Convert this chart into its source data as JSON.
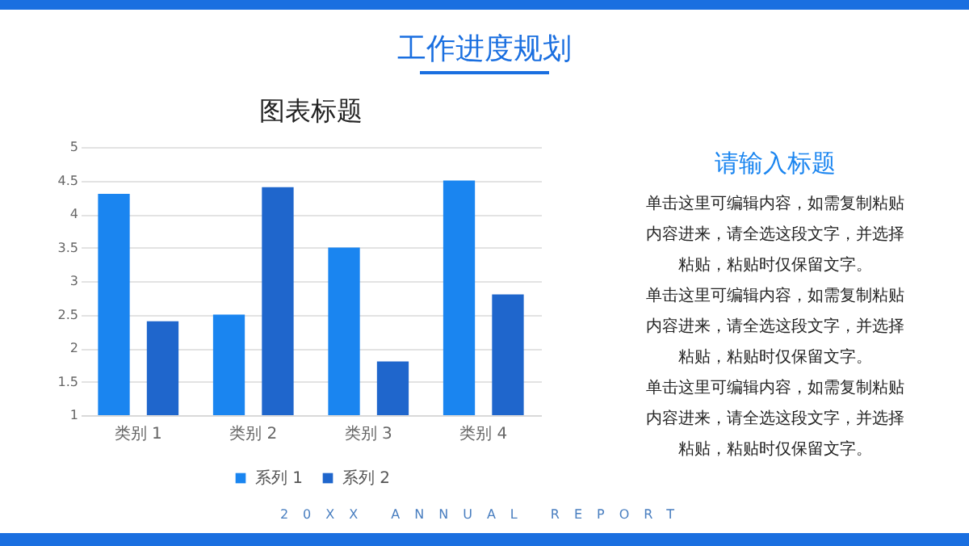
{
  "chart_data": {
    "type": "bar",
    "title": "图表标题",
    "categories": [
      "类别 1",
      "类别 2",
      "类别 3",
      "类别 4"
    ],
    "series": [
      {
        "name": "系列 1",
        "color": "#1a85f0",
        "values": [
          4.3,
          2.5,
          3.5,
          4.5
        ]
      },
      {
        "name": "系列 2",
        "color": "#1f66cc",
        "values": [
          2.4,
          4.4,
          1.8,
          2.8
        ]
      }
    ],
    "ylim": [
      1,
      5
    ],
    "yticks": [
      1,
      1.5,
      2,
      2.5,
      3,
      3.5,
      4,
      4.5,
      5
    ],
    "grid": "y",
    "legend": "bottom",
    "annotations": [
      "工作进度规划",
      "请输入标题",
      "单击这里可编辑内容，如需复制粘贴内容进来，请全选这段文字，并选择粘贴，粘贴时仅保留文字。",
      "单击这里可编辑内容，如需复制粘贴内容进来，请全选这段文字，并选择粘贴，粘贴时仅保留文字。",
      "单击这里可编辑内容，如需复制粘贴内容进来，请全选这段文字，并选择粘贴，粘贴时仅保留文字。",
      "20XX ANNUAL REPORT"
    ]
  }
}
